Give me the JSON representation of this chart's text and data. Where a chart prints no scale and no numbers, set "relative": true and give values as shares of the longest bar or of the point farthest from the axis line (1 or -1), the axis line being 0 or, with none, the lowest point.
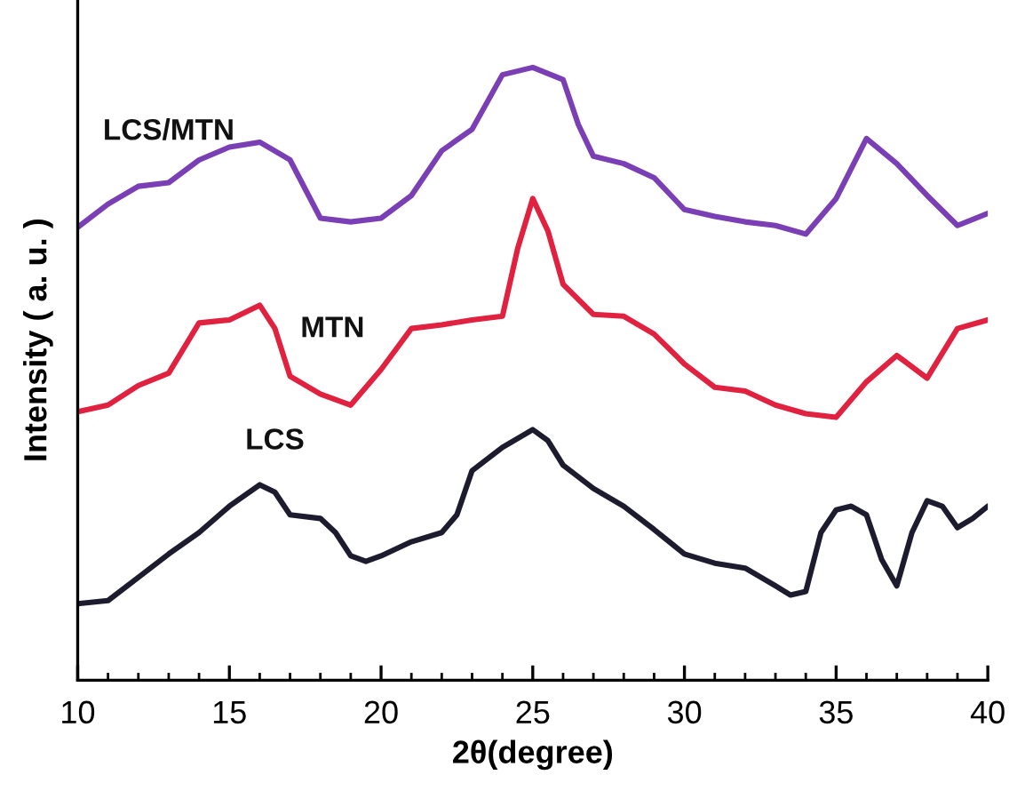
{
  "chart_data": {
    "type": "line",
    "relative": true,
    "xlabel": "2θ(degree)",
    "ylabel": "Intensity ( a. u. )",
    "xlim": [
      10,
      40
    ],
    "xticks": [
      10,
      15,
      20,
      25,
      30,
      35,
      40
    ],
    "grid": false,
    "legend": false,
    "marker": "none",
    "line_style": "solid",
    "tick_labels": "x",
    "series": [
      {
        "name": "LCS",
        "color": "#1c1c2e",
        "x": [
          10,
          11,
          12,
          13,
          14,
          15,
          16,
          16.5,
          17,
          18,
          18.5,
          19,
          19.5,
          20,
          21,
          22,
          22.5,
          23,
          24,
          25,
          25.5,
          26,
          27,
          28,
          29,
          30,
          31,
          32,
          33,
          33.5,
          34,
          34.5,
          35,
          35.5,
          36,
          36.5,
          37,
          37.5,
          38,
          38.5,
          39,
          39.5,
          40
        ],
        "values": [
          0.125,
          0.13,
          0.168,
          0.206,
          0.241,
          0.284,
          0.319,
          0.307,
          0.27,
          0.264,
          0.241,
          0.203,
          0.194,
          0.203,
          0.226,
          0.241,
          0.27,
          0.342,
          0.38,
          0.409,
          0.391,
          0.351,
          0.313,
          0.284,
          0.246,
          0.206,
          0.191,
          0.183,
          0.154,
          0.139,
          0.145,
          0.241,
          0.278,
          0.284,
          0.27,
          0.197,
          0.154,
          0.241,
          0.293,
          0.284,
          0.249,
          0.264,
          0.284
        ]
      },
      {
        "name": "MTN",
        "color": "#e0213f",
        "x": [
          10,
          11,
          12,
          13,
          14,
          15,
          16,
          16.5,
          17,
          18,
          19,
          20,
          21,
          22,
          23,
          24,
          24.5,
          25,
          25.5,
          26,
          27,
          28,
          29,
          30,
          31,
          32,
          33,
          34,
          35,
          36,
          37,
          38,
          39,
          40
        ],
        "values": [
          0.438,
          0.449,
          0.481,
          0.501,
          0.583,
          0.588,
          0.612,
          0.574,
          0.496,
          0.467,
          0.449,
          0.507,
          0.574,
          0.58,
          0.588,
          0.594,
          0.704,
          0.786,
          0.733,
          0.646,
          0.597,
          0.594,
          0.565,
          0.516,
          0.478,
          0.472,
          0.449,
          0.435,
          0.429,
          0.487,
          0.53,
          0.493,
          0.574,
          0.588
        ]
      },
      {
        "name": "LCS/MTN",
        "color": "#7b3fb5",
        "x": [
          10,
          11,
          12,
          13,
          14,
          15,
          16,
          17,
          18,
          19,
          20,
          21,
          22,
          23,
          24,
          25,
          26,
          26.5,
          27,
          28,
          29,
          30,
          31,
          32,
          33,
          34,
          35,
          36,
          37,
          38,
          39,
          40
        ],
        "values": [
          0.739,
          0.777,
          0.806,
          0.812,
          0.849,
          0.87,
          0.878,
          0.849,
          0.754,
          0.748,
          0.754,
          0.791,
          0.864,
          0.899,
          0.988,
          1,
          0.98,
          0.907,
          0.855,
          0.843,
          0.82,
          0.768,
          0.757,
          0.748,
          0.742,
          0.728,
          0.786,
          0.884,
          0.843,
          0.791,
          0.742,
          0.762
        ]
      }
    ]
  }
}
